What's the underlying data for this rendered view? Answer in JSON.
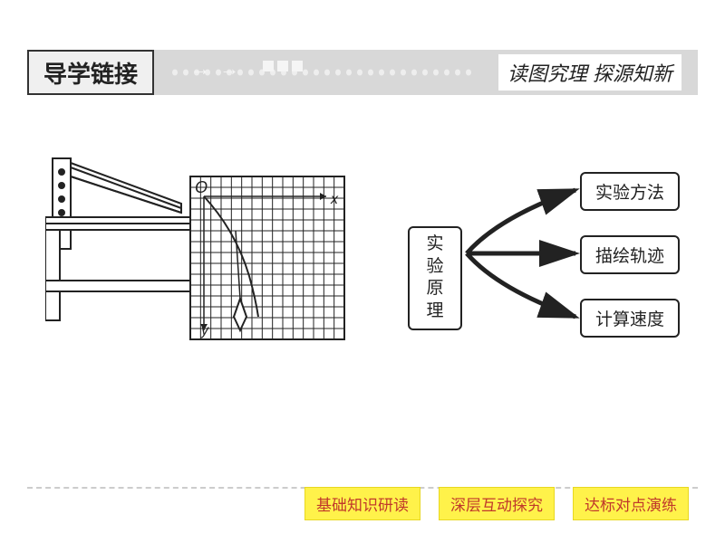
{
  "header": {
    "title": "导学链接",
    "subtitle": "读图究理  探源知新",
    "arrows_decor": "→ →",
    "colors": {
      "bar_bg": "#d8d8d8",
      "title_border": "#333333",
      "title_text": "#222222",
      "subtitle_text": "#222222",
      "dot_color": "#eeeeee"
    },
    "dot_count": 28
  },
  "experiment_diagram": {
    "type": "physics-apparatus",
    "labels": {
      "origin": "O",
      "x_axis": "x",
      "y_axis": "y"
    },
    "grid": {
      "cols": 15,
      "rows": 15,
      "stroke": "#222222",
      "bg": "#ffffff"
    },
    "colors": {
      "stroke": "#222222",
      "fill": "#ffffff"
    }
  },
  "concept_map": {
    "type": "tree",
    "root": "实验\n原理",
    "children": [
      "实验方法",
      "描绘轨迹",
      "计算速度"
    ],
    "box_border": "#222222",
    "box_radius": 6,
    "arrow_color": "#222222",
    "font_size": 19
  },
  "tabs": {
    "items": [
      "基础知识研读",
      "深层互动探究",
      "达标对点演练"
    ],
    "bg": "#fff24a",
    "text_color": "#c0392b"
  }
}
